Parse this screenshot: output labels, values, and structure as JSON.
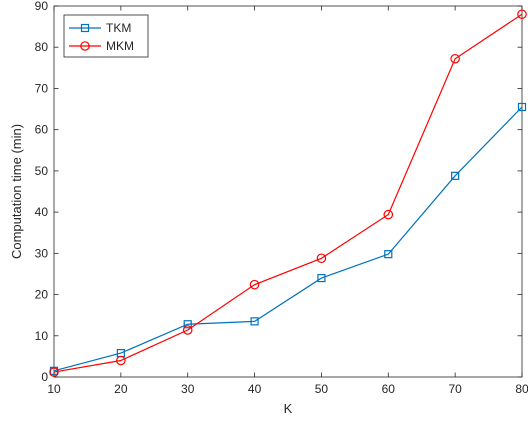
{
  "chart_data": {
    "type": "line",
    "title": "",
    "xlabel": "K",
    "ylabel": "Computation time (min)",
    "x": [
      10,
      20,
      30,
      40,
      50,
      60,
      70,
      80
    ],
    "xlim": [
      10,
      80
    ],
    "ylim": [
      0,
      90
    ],
    "xticks": [
      10,
      20,
      30,
      40,
      50,
      60,
      70,
      80
    ],
    "yticks": [
      0,
      10,
      20,
      30,
      40,
      50,
      60,
      70,
      80,
      90
    ],
    "grid": false,
    "legend_position": "top-left",
    "series": [
      {
        "name": "TKM",
        "color": "#0072BD",
        "marker": "square",
        "values": [
          1.5,
          5.8,
          12.8,
          13.5,
          24.0,
          29.8,
          48.8,
          65.5
        ]
      },
      {
        "name": "MKM",
        "color": "#FF0000",
        "marker": "circle",
        "values": [
          1.2,
          4.0,
          11.4,
          22.4,
          28.8,
          39.4,
          77.2,
          88.0
        ]
      }
    ]
  }
}
